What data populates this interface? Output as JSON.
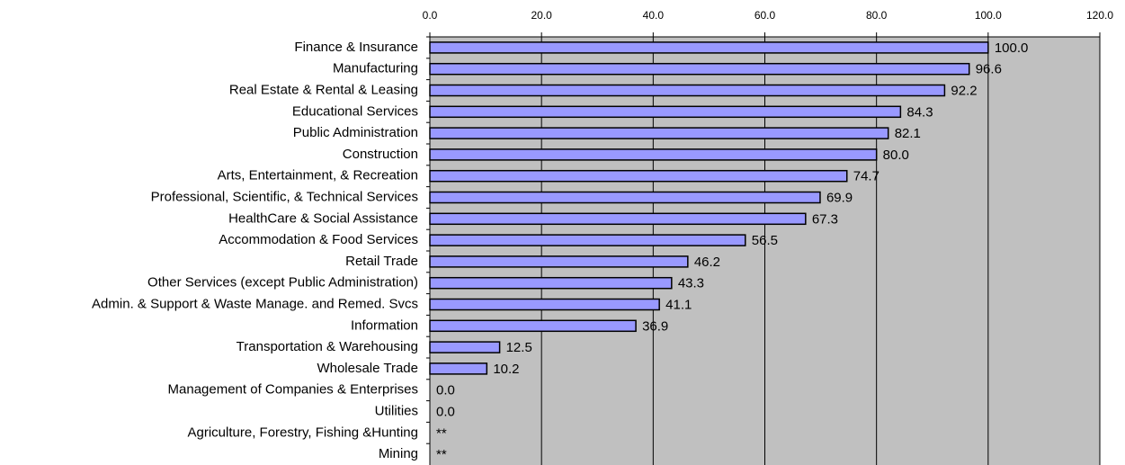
{
  "chart_data": {
    "type": "bar",
    "orientation": "horizontal",
    "categories": [
      "Finance & Insurance",
      "Manufacturing",
      "Real Estate & Rental & Leasing",
      "Educational Services",
      "Public Administration",
      "Construction",
      "Arts, Entertainment, & Recreation",
      "Professional, Scientific, & Technical Services",
      "HealthCare & Social Assistance",
      "Accommodation & Food Services",
      "Retail Trade",
      "Other Services (except Public Administration)",
      "Admin. & Support & Waste Manage. and Remed. Svcs",
      "Information",
      "Transportation & Warehousing",
      "Wholesale Trade",
      "Management of Companies & Enterprises",
      "Utilities",
      "Agriculture, Forestry, Fishing &Hunting",
      "Mining"
    ],
    "values": [
      100.0,
      96.6,
      92.2,
      84.3,
      82.1,
      80.0,
      74.7,
      69.9,
      67.3,
      56.5,
      46.2,
      43.3,
      41.1,
      36.9,
      12.5,
      10.2,
      0.0,
      0.0,
      null,
      null
    ],
    "value_labels": [
      "100.0",
      "96.6",
      "92.2",
      "84.3",
      "82.1",
      "80.0",
      "74.7",
      "69.9",
      "67.3",
      "56.5",
      "46.2",
      "43.3",
      "41.1",
      "36.9",
      "12.5",
      "10.2",
      "0.0",
      "0.0",
      "**",
      "**"
    ],
    "color": "#9999ff",
    "xlim": [
      0,
      120
    ],
    "xticks": [
      {
        "value": 0,
        "label": "0.0"
      },
      {
        "value": 20,
        "label": "20.0"
      },
      {
        "value": 40,
        "label": "40.0"
      },
      {
        "value": 60,
        "label": "60.0"
      },
      {
        "value": 80,
        "label": "80.0"
      },
      {
        "value": 100,
        "label": "100.0"
      },
      {
        "value": 120,
        "label": "120.0"
      }
    ],
    "grid": true
  }
}
